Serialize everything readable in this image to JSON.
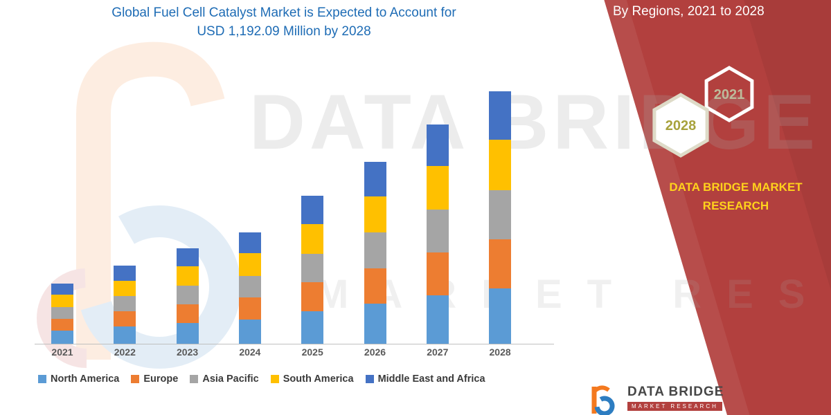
{
  "title": {
    "line1": "Global Fuel Cell Catalyst Market is Expected to Account for",
    "line2": "USD 1,192.09 Million by 2028"
  },
  "side_panel": {
    "heading": "By Regions, 2021 to 2028",
    "hexagons": [
      {
        "label": "2021"
      },
      {
        "label": "2028"
      }
    ],
    "brand_line1": "DATA BRIDGE MARKET",
    "brand_line2": "RESEARCH",
    "panel_color": "#B2403E"
  },
  "watermark": {
    "line1": "DATA BRIDGE",
    "line2": "MARKET RESEARCH"
  },
  "footer_logo": {
    "brand": "DATA BRIDGE",
    "ribbon": "MARKET RESEARCH"
  },
  "colors": {
    "title_blue": "#1E6CB5",
    "panel_red": "#B2403E",
    "brand_yellow": "#FFD21C",
    "axis_gray": "#BFBFBF"
  },
  "chart_data": {
    "type": "bar",
    "stacked": true,
    "title": "Global Fuel Cell Catalyst Market is Expected to Account for USD 1,192.09 Million by 2028",
    "categories": [
      "2021",
      "2022",
      "2023",
      "2024",
      "2025",
      "2026",
      "2027",
      "2028"
    ],
    "series": [
      {
        "name": "North America",
        "color": "#5B9BD5",
        "values": [
          63,
          81,
          99,
          116,
          154,
          189,
          228,
          262
        ]
      },
      {
        "name": "Europe",
        "color": "#ED7D31",
        "values": [
          56,
          72,
          88,
          103,
          136,
          168,
          202,
          232
        ]
      },
      {
        "name": "Asia Pacific",
        "color": "#A5A5A5",
        "values": [
          56,
          72,
          88,
          103,
          136,
          168,
          202,
          232
        ]
      },
      {
        "name": "South America",
        "color": "#FFC000",
        "values": [
          57,
          74,
          90,
          105,
          140,
          172,
          207,
          238
        ]
      },
      {
        "name": "Middle East and Africa",
        "color": "#4472C4",
        "values": [
          54,
          70,
          86,
          100,
          132,
          162,
          195,
          228
        ]
      }
    ],
    "totals_estimated": [
      286,
      369,
      451,
      527,
      698,
      859,
      1034,
      1192
    ],
    "xlabel": "",
    "ylabel": "",
    "value_unit": "USD Million (estimated from bar heights; y-axis not shown in source)",
    "grid": false,
    "y_axis_visible": false,
    "legend_position": "bottom"
  }
}
